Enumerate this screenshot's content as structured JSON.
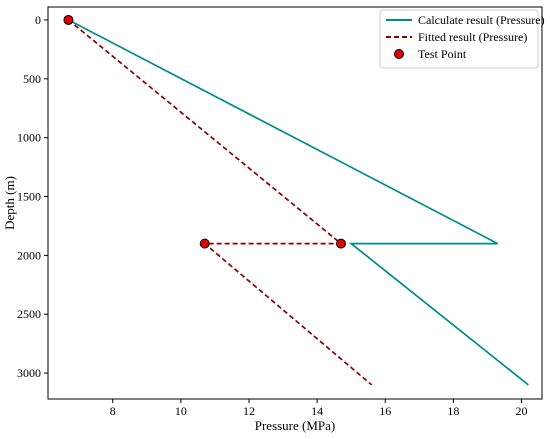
{
  "chart_data": {
    "type": "line",
    "title": "",
    "xlabel": "Pressure (MPa)",
    "ylabel": "Depth (m)",
    "xlim": [
      6.1,
      20.6
    ],
    "ylim": [
      3220,
      -110
    ],
    "y_inverted": true,
    "x_ticks": [
      8,
      10,
      12,
      14,
      16,
      18,
      20
    ],
    "y_ticks": [
      0,
      500,
      1000,
      1500,
      2000,
      2500,
      3000
    ],
    "grid": false,
    "legend_position": "top-right",
    "series": [
      {
        "name": "Calculate result (Pressure)",
        "style": "solid",
        "color": "#008b8b",
        "points": [
          [
            6.7,
            0
          ],
          [
            19.3,
            1900
          ],
          [
            15.0,
            1900
          ],
          [
            20.2,
            3100
          ]
        ]
      },
      {
        "name": "Fitted result (Pressure)",
        "style": "dashed",
        "color": "#8b0000",
        "points": [
          [
            6.7,
            0
          ],
          [
            14.7,
            1900
          ],
          [
            10.7,
            1900
          ],
          [
            15.6,
            3100
          ]
        ]
      },
      {
        "name": "Test Point",
        "style": "marker",
        "color": "#e00000",
        "points": [
          [
            6.7,
            0
          ],
          [
            14.7,
            1900
          ],
          [
            10.7,
            1900
          ]
        ]
      }
    ]
  }
}
